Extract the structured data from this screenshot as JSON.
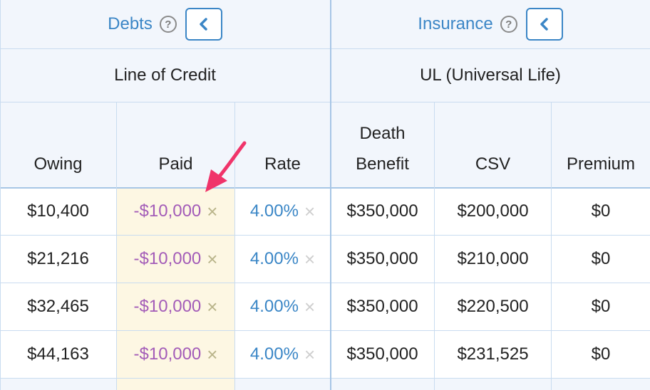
{
  "sections": {
    "debts": {
      "title": "Debts",
      "help": "?",
      "sub": "Line of Credit"
    },
    "insurance": {
      "title": "Insurance",
      "help": "?",
      "sub": "UL (Universal Life)"
    }
  },
  "columns": {
    "owing": "Owing",
    "paid": "Paid",
    "rate": "Rate",
    "death_benefit_line1": "Death",
    "death_benefit_line2": "Benefit",
    "csv": "CSV",
    "premium": "Premium"
  },
  "rows": [
    {
      "owing": "$10,400",
      "paid": "-$10,000",
      "rate": "4.00%",
      "death_benefit": "$350,000",
      "csv": "$200,000",
      "premium": "$0"
    },
    {
      "owing": "$21,216",
      "paid": "-$10,000",
      "rate": "4.00%",
      "death_benefit": "$350,000",
      "csv": "$210,000",
      "premium": "$0"
    },
    {
      "owing": "$32,465",
      "paid": "-$10,000",
      "rate": "4.00%",
      "death_benefit": "$350,000",
      "csv": "$220,500",
      "premium": "$0"
    },
    {
      "owing": "$44,163",
      "paid": "-$10,000",
      "rate": "4.00%",
      "death_benefit": "$350,000",
      "csv": "$231,525",
      "premium": "$0"
    }
  ],
  "icons": {
    "clear": "×",
    "back": "chevron-left-icon",
    "help": "question-circle-icon",
    "annotation": "arrow-icon"
  },
  "colors": {
    "accent": "#3b86c6",
    "paid_text": "#a35cb8",
    "paid_bg": "#fdf7e3",
    "annotation": "#f0346a"
  }
}
